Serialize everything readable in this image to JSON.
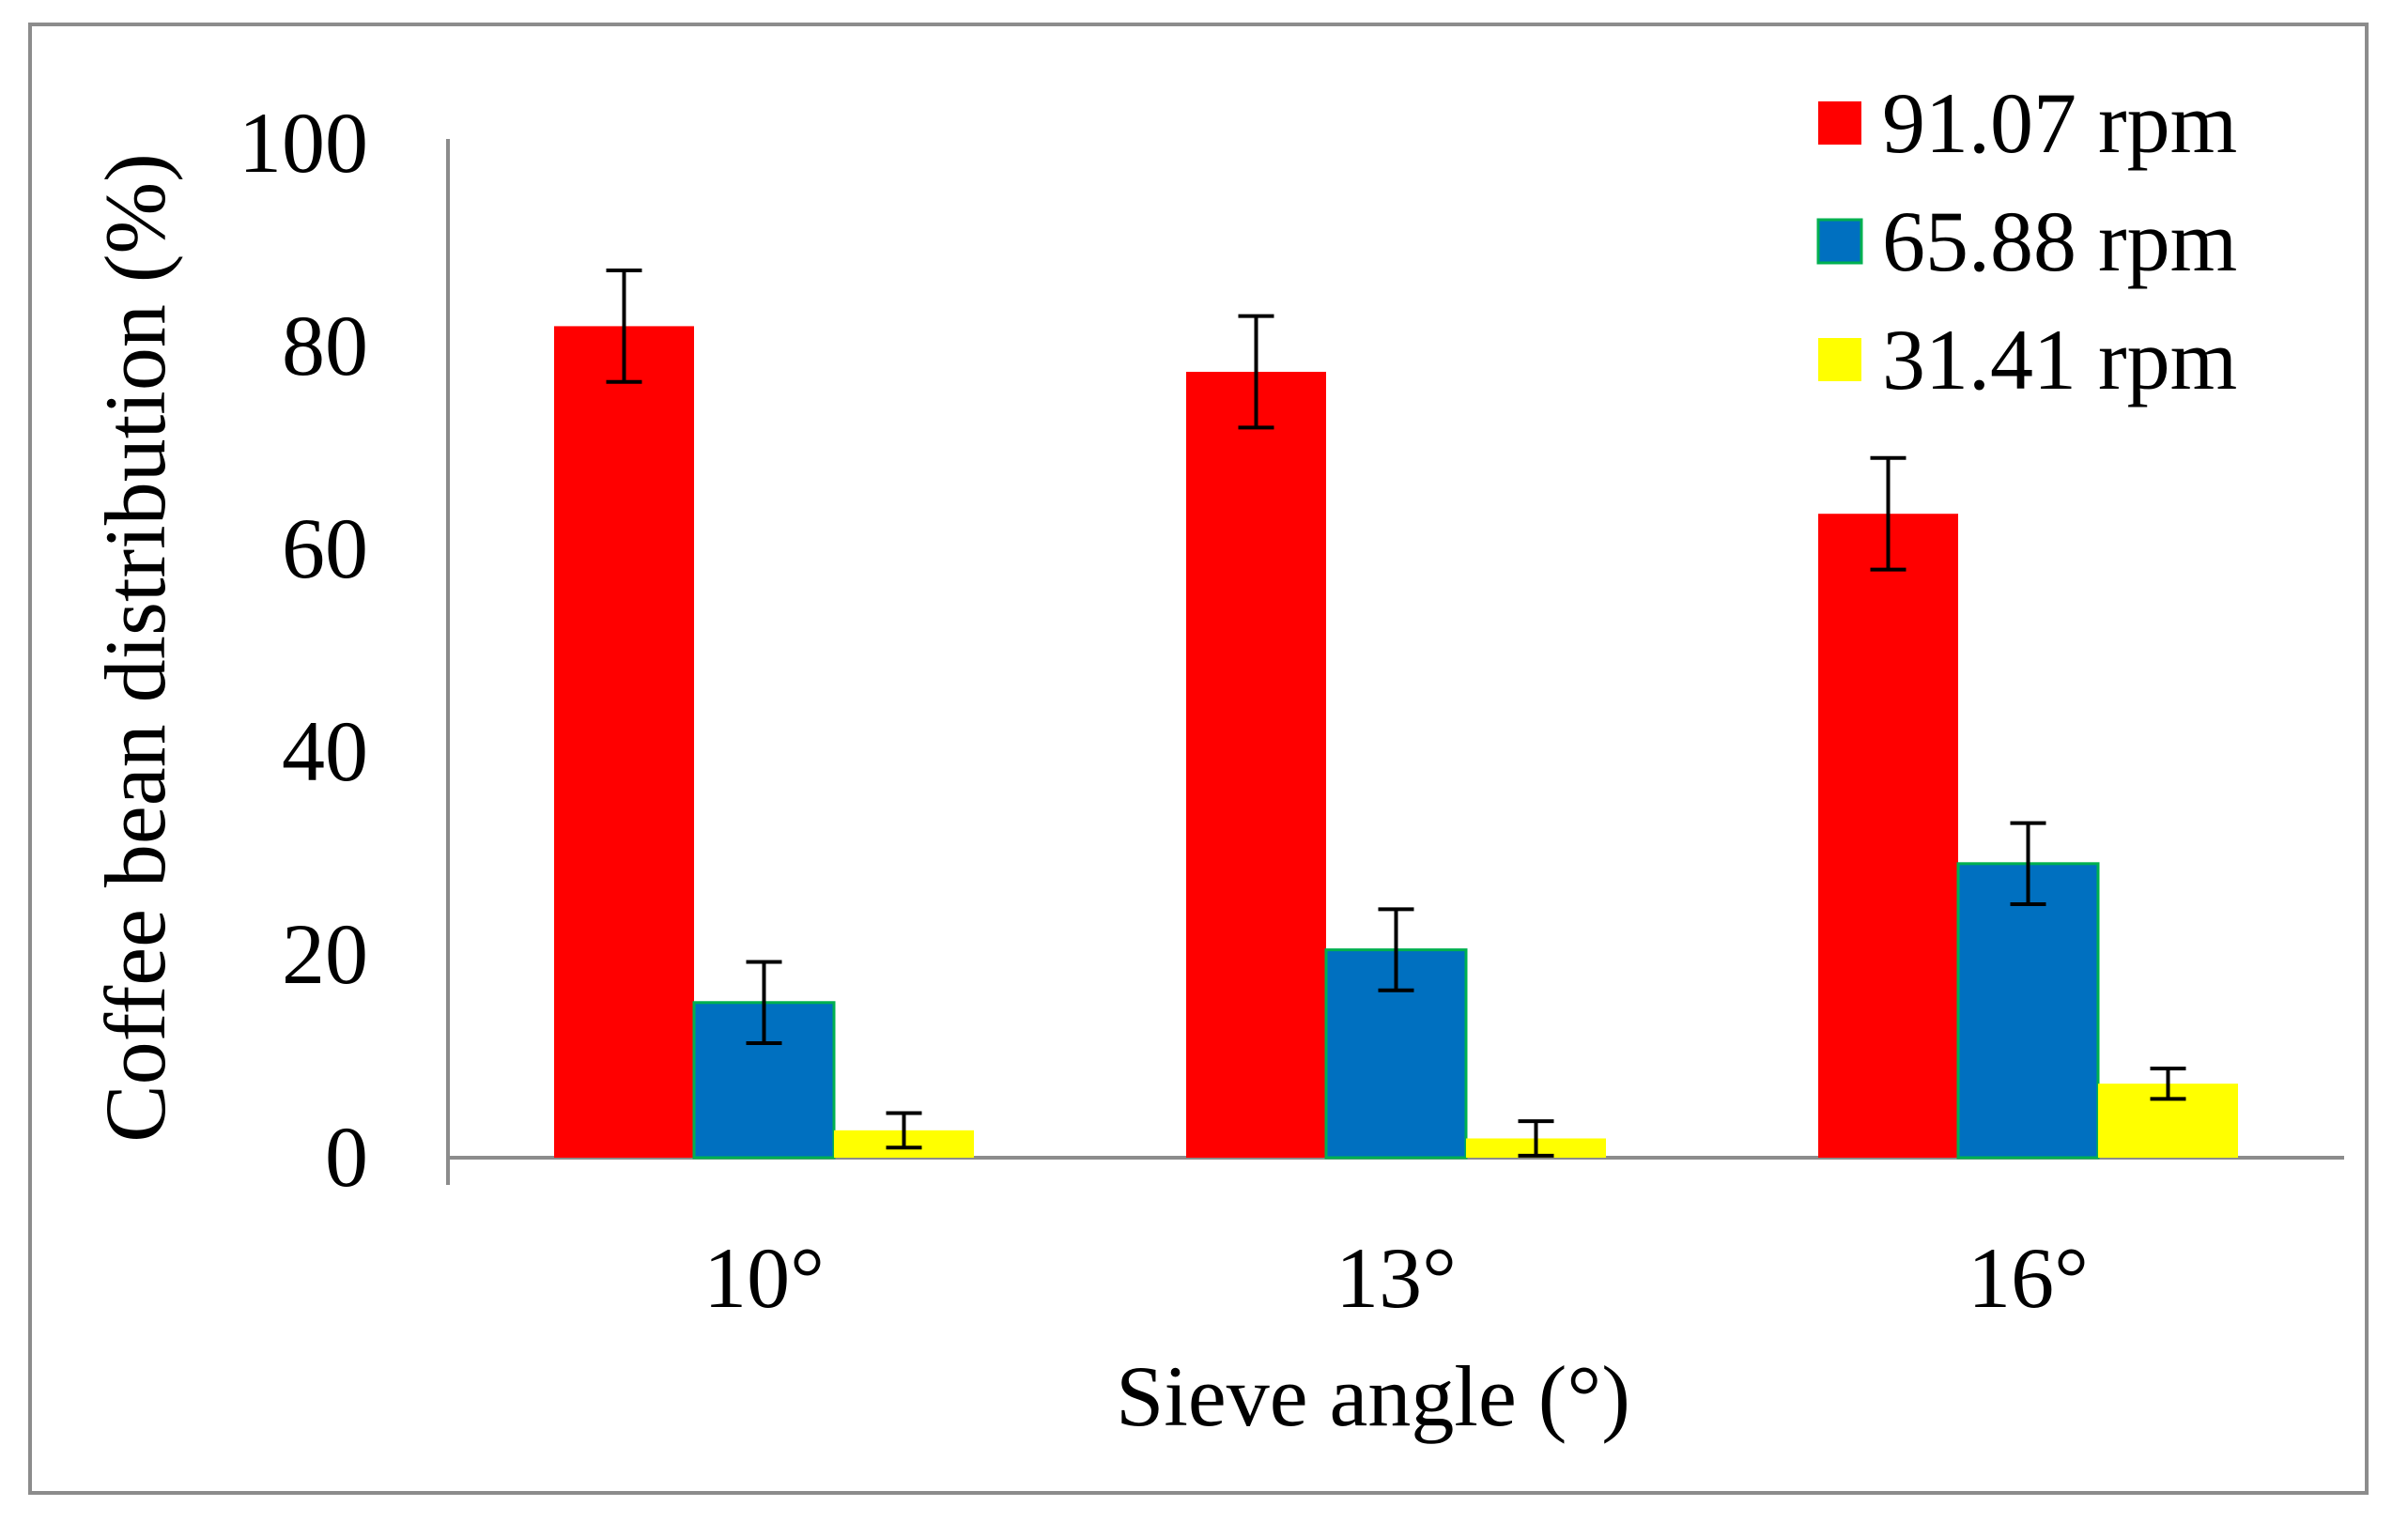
{
  "chart_data": {
    "type": "bar",
    "title": "",
    "xlabel": "Sieve angle (°)",
    "ylabel": "Coffee bean distribution (%)",
    "ylim": [
      0,
      100
    ],
    "yticks": [
      0,
      20,
      40,
      60,
      80,
      100
    ],
    "ytick_labels": [
      "0",
      "20",
      "40",
      "60",
      "80",
      "100"
    ],
    "categories": [
      "10°",
      "13°",
      "16°"
    ],
    "series": [
      {
        "name": "91.07 rpm",
        "color": "#ff0000",
        "values": [
          82,
          77.5,
          63.5
        ],
        "errors": [
          5.5,
          5.5,
          5.5
        ]
      },
      {
        "name": "65.88 rpm",
        "color": "#0070c0",
        "values": [
          15.3,
          20.5,
          29
        ],
        "errors": [
          4,
          4,
          4
        ]
      },
      {
        "name": "31.41  rpm",
        "color": "#ffff00",
        "values": [
          2.7,
          1.9,
          7.3
        ],
        "errors": [
          1.7,
          1.7,
          1.5
        ]
      }
    ],
    "legend_position": "top-right",
    "grid": false
  }
}
